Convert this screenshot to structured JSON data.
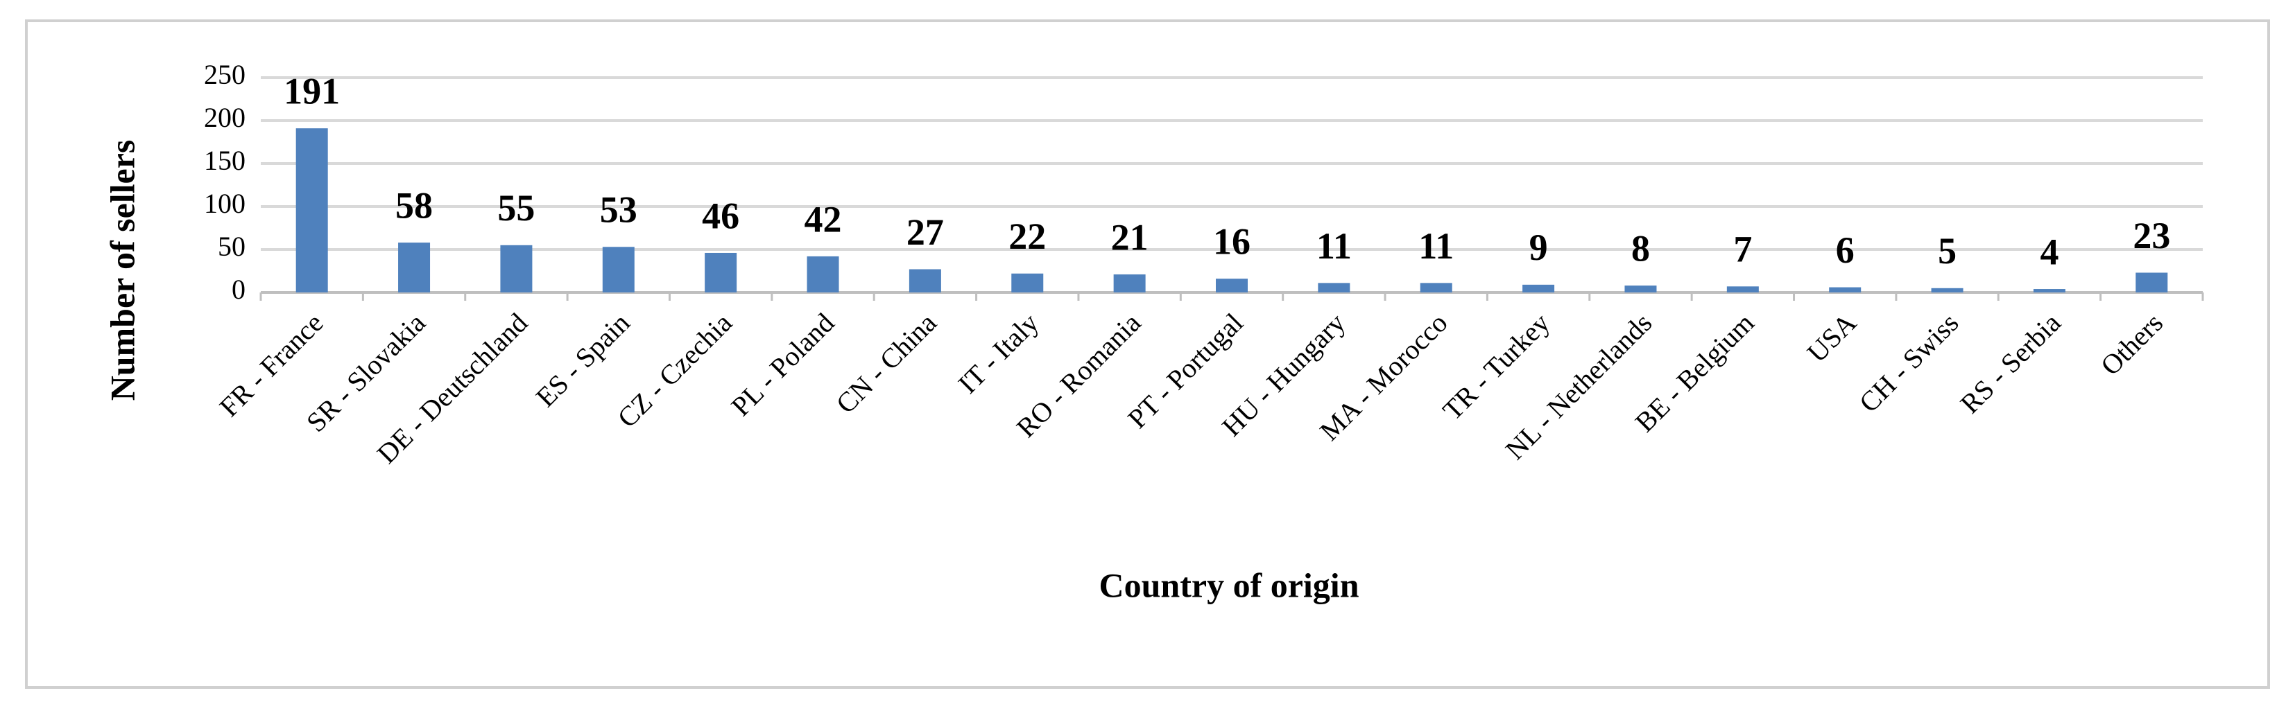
{
  "chart_data": {
    "type": "bar",
    "x_label": "Country of origin",
    "y_label": "Number of sellers",
    "categories": [
      "FR - France",
      "SR - Slovakia",
      "DE - Deutschland",
      "ES - Spain",
      "CZ - Czechia",
      "PL - Poland",
      "CN - China",
      "IT - Italy",
      "RO - Romania",
      "PT - Portugal",
      "HU - Hungary",
      "MA - Morocco",
      "TR - Turkey",
      "NL - Netherlands",
      "BE - Belgium",
      "USA",
      "CH - Swiss",
      "RS - Serbia",
      "Others"
    ],
    "values": [
      191,
      58,
      55,
      53,
      46,
      42,
      27,
      22,
      21,
      16,
      11,
      11,
      9,
      8,
      7,
      6,
      5,
      4,
      23
    ],
    "color": "#4f81bd",
    "ylim": [
      0,
      250
    ],
    "yticks": [
      0,
      50,
      100,
      150,
      200,
      250
    ],
    "grid": true
  }
}
